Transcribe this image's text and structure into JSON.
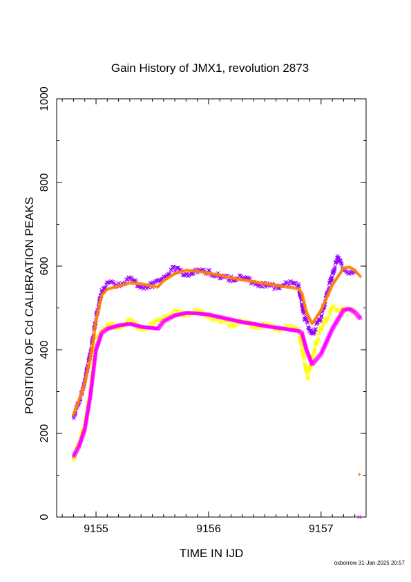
{
  "chart_data": {
    "type": "scatter",
    "title": "Gain History of JMX1, revolution 2873",
    "xlabel": "TIME IN IJD",
    "ylabel": "POSITION OF Cd CALIBRATION PEAKS",
    "xlim": [
      9154.65,
      9157.4
    ],
    "ylim": [
      0,
      1000
    ],
    "x_ticks": [
      9155,
      9156,
      9157
    ],
    "x_tick_labels": [
      "9155",
      "9156",
      "9157"
    ],
    "y_ticks": [
      0,
      200,
      400,
      600,
      800,
      1000
    ],
    "y_tick_labels": [
      "0",
      "200",
      "400",
      "600",
      "800",
      "1000"
    ],
    "grid": false,
    "legend": "none",
    "series": [
      {
        "color": "#ff8000",
        "marker": "plus",
        "x": [
          9154.8,
          9154.85,
          9154.9,
          9154.95,
          9155.0,
          9155.05,
          9155.1,
          9155.2,
          9155.3,
          9155.4,
          9155.5,
          9155.55,
          9155.6,
          9155.7,
          9155.8,
          9155.9,
          9156.0,
          9156.1,
          9156.2,
          9156.3,
          9156.4,
          9156.5,
          9156.6,
          9156.7,
          9156.8,
          9156.83,
          9156.87,
          9156.92,
          9157.0,
          9157.1,
          9157.2,
          9157.25,
          9157.3,
          9157.35
        ],
        "y": [
          245,
          280,
          320,
          380,
          470,
          530,
          545,
          552,
          560,
          558,
          552,
          550,
          565,
          582,
          590,
          588,
          583,
          578,
          572,
          567,
          563,
          558,
          554,
          550,
          546,
          535,
          490,
          462,
          495,
          555,
          595,
          598,
          590,
          575
        ]
      },
      {
        "color": "#9900ff",
        "marker": "cross",
        "x": [
          9154.8,
          9154.88,
          9154.95,
          9155.0,
          9155.05,
          9155.1,
          9155.2,
          9155.3,
          9155.4,
          9155.5,
          9155.6,
          9155.7,
          9155.8,
          9155.9,
          9156.0,
          9156.1,
          9156.2,
          9156.3,
          9156.4,
          9156.5,
          9156.6,
          9156.7,
          9156.8,
          9156.85,
          9156.92,
          9157.0,
          9157.1,
          9157.15,
          9157.2,
          9157.3
        ],
        "y": [
          240,
          300,
          390,
          475,
          540,
          560,
          555,
          570,
          550,
          555,
          575,
          595,
          580,
          590,
          585,
          575,
          570,
          575,
          560,
          555,
          550,
          560,
          552,
          480,
          435,
          480,
          580,
          620,
          590,
          585
        ]
      },
      {
        "color": "#ff00ff",
        "marker": "cross",
        "x": [
          9154.8,
          9154.85,
          9154.9,
          9154.95,
          9155.0,
          9155.05,
          9155.1,
          9155.2,
          9155.3,
          9155.4,
          9155.5,
          9155.55,
          9155.6,
          9155.7,
          9155.8,
          9155.9,
          9156.0,
          9156.1,
          9156.2,
          9156.3,
          9156.4,
          9156.5,
          9156.6,
          9156.7,
          9156.8,
          9156.83,
          9156.87,
          9156.92,
          9157.0,
          9157.1,
          9157.2,
          9157.25,
          9157.3,
          9157.35
        ],
        "y": [
          145,
          170,
          210,
          290,
          400,
          440,
          450,
          458,
          462,
          455,
          452,
          450,
          468,
          482,
          488,
          487,
          484,
          478,
          472,
          466,
          462,
          457,
          453,
          449,
          445,
          440,
          400,
          365,
          390,
          450,
          495,
          498,
          490,
          475
        ]
      },
      {
        "color": "#ffff00",
        "marker": "cross",
        "x": [
          9154.8,
          9154.9,
          9154.95,
          9155.0,
          9155.05,
          9155.1,
          9155.2,
          9155.3,
          9155.4,
          9155.5,
          9155.6,
          9155.7,
          9155.8,
          9155.9,
          9156.0,
          9156.1,
          9156.2,
          9156.3,
          9156.4,
          9156.5,
          9156.6,
          9156.7,
          9156.8,
          9156.88,
          9156.95,
          9157.0,
          9157.1,
          9157.2,
          9157.3
        ],
        "y": [
          140,
          220,
          300,
          420,
          445,
          460,
          455,
          470,
          450,
          460,
          480,
          490,
          485,
          495,
          480,
          470,
          460,
          470,
          455,
          460,
          450,
          455,
          445,
          335,
          410,
          450,
          500,
          495,
          490
        ]
      },
      {
        "color": "#ff8000",
        "marker": "plus",
        "x": [
          9157.34
        ],
        "y": [
          102
        ]
      },
      {
        "color": "#ff00ff",
        "marker": "cross",
        "x": [
          9157.34
        ],
        "y": [
          0
        ]
      }
    ],
    "footer": "oxborrow 31-Jan-2025 20:57"
  }
}
